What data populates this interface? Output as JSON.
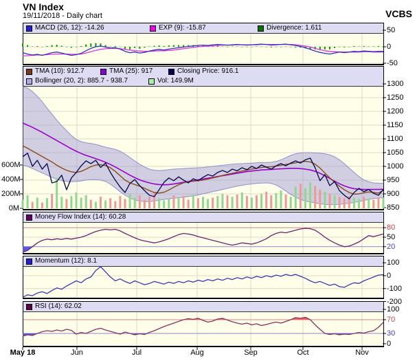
{
  "page": {
    "title": "VN Index",
    "subtitle": "19/11/2018 - Daily chart",
    "brand": "VCBS"
  },
  "colors": {
    "plot_bg": "#fffee9",
    "header_bg": "#dedcf2",
    "grid": "#d9d9c6",
    "macd_line": "#3030c0",
    "exp_line": "#e030e0",
    "divergence_bar": "#009900",
    "close_line": "#101055",
    "tma10_line": "#8a4a1a",
    "tma25_line": "#9900cc",
    "bollinger_fill": "rgba(145,140,215,0.42)",
    "bollinger_edge": "#9090d0",
    "vol_up": "#90d890",
    "vol_down": "#f09898",
    "mfi_line": "#702070",
    "momentum_line": "#3838b8",
    "rsi_line": "#8a3060",
    "overbought_line": "#cc8888",
    "oversold_line": "#8888cc",
    "overbought_fill": "#ff5c5c",
    "oversold_fill": "#5858e0",
    "tick_red": "#b84444",
    "tick_blue": "#4444b8"
  },
  "chart_data": {
    "type": "line",
    "title": "VN Index - Daily chart",
    "x_axis": {
      "labels": [
        "May 18",
        "Jun",
        "Jul",
        "Aug",
        "Sep",
        "Oct",
        "Nov"
      ]
    },
    "panels": [
      {
        "name": "MACD",
        "legend": [
          {
            "label": "MACD (26, 12): -14.26",
            "color": "#2222cc"
          },
          {
            "label": "EXP (9): -15.87",
            "color": "#ee00ee"
          },
          {
            "label": "Divergence: 1.611",
            "color": "#007700"
          }
        ],
        "right_ticks": [
          {
            "v": 50,
            "label": "50"
          },
          {
            "v": 0,
            "label": "0"
          },
          {
            "v": -50,
            "label": "-50"
          }
        ],
        "grid_values": [
          0,
          -50
        ],
        "series": {
          "macd": [
            -18,
            -22,
            -25,
            -23,
            -26,
            -22,
            -18,
            -16,
            -19,
            -23,
            -26,
            -24,
            -20,
            -12,
            -5,
            0,
            2,
            -1,
            -4,
            -3,
            -7,
            -14,
            -18,
            -16,
            -19,
            -17,
            -13,
            -10,
            -8,
            -10,
            -7,
            -5,
            -3,
            -1,
            1,
            3,
            4,
            5,
            4,
            6,
            7,
            6,
            5,
            6,
            7,
            6,
            5,
            6,
            7,
            8,
            7,
            5,
            6,
            7,
            8,
            6,
            4,
            1,
            -3,
            -8,
            -13,
            -17,
            -20,
            -22,
            -19,
            -16,
            -18,
            -16,
            -14,
            -15,
            -13,
            -14,
            -15,
            -14,
            -14.26
          ],
          "exp": [
            -28,
            -27,
            -26,
            -25,
            -25,
            -24,
            -23,
            -22,
            -22,
            -22,
            -23,
            -23,
            -22,
            -19,
            -15,
            -11,
            -8,
            -6,
            -5,
            -5,
            -6,
            -8,
            -10,
            -12,
            -13,
            -14,
            -14,
            -13,
            -12,
            -12,
            -11,
            -10,
            -8,
            -6,
            -4,
            -2,
            0,
            1,
            2,
            3,
            4,
            5,
            5,
            5,
            6,
            6,
            6,
            6,
            6,
            7,
            7,
            7,
            7,
            7,
            7,
            7,
            6,
            4,
            2,
            -1,
            -5,
            -9,
            -12,
            -14,
            -15,
            -16,
            -16,
            -16,
            -16,
            -16,
            -15,
            -15,
            -16,
            -16,
            -15.87
          ]
        },
        "divergence_last": 1.611
      },
      {
        "name": "Price",
        "legend": [
          {
            "label": "TMA (10): 912.7",
            "color": "#7b3a10"
          },
          {
            "label": "TMA (25): 917",
            "color": "#8800cc"
          },
          {
            "label": "Closing Price: 916.1",
            "color": "#000055"
          },
          {
            "label": "Bollinger (20, 2): 885.7 - 938.7",
            "color": "#aaaae8"
          },
          {
            "label": "Vol: 149.9M",
            "color": "#aaeeaa"
          }
        ],
        "right_ticks": [
          {
            "v": 1300,
            "label": "1300"
          },
          {
            "v": 1250,
            "label": "1250"
          },
          {
            "v": 1200,
            "label": "1200"
          },
          {
            "v": 1150,
            "label": "1150"
          },
          {
            "v": 1100,
            "label": "1100"
          },
          {
            "v": 1050,
            "label": "1050"
          },
          {
            "v": 1000,
            "label": "1000"
          },
          {
            "v": 950,
            "label": "950"
          },
          {
            "v": 900,
            "label": "900"
          },
          {
            "v": 850,
            "label": "850"
          }
        ],
        "left_ticks": [
          {
            "v": 600,
            "label": "600M"
          },
          {
            "v": 400,
            "label": "400M"
          },
          {
            "v": 200,
            "label": "200M"
          },
          {
            "v": 0,
            "label": "0M"
          }
        ],
        "grid_values": [
          1250,
          1200,
          1150,
          1100,
          1050,
          1000,
          950,
          900
        ],
        "series": {
          "close": [
            1035,
            1048,
            1000,
            1022,
            990,
            1010,
            940,
            945,
            968,
            915,
            958,
            978,
            1002,
            1020,
            1010,
            1022,
            996,
            1012,
            978,
            950,
            925,
            905,
            938,
            952,
            930,
            912,
            895,
            890,
            915,
            942,
            958,
            948,
            962,
            950,
            940,
            955,
            948,
            960,
            970,
            965,
            978,
            985,
            978,
            990,
            984,
            995,
            988,
            1000,
            992,
            1005,
            997,
            990,
            1002,
            1010,
            1002,
            1012,
            1020,
            1012,
            1024,
            1030,
            995,
            948,
            970,
            930,
            945,
            912,
            895,
            882,
            905,
            920,
            908,
            916,
            902,
            895,
            916.1
          ],
          "tma10": [
            1075,
            1066,
            1056,
            1046,
            1036,
            1026,
            1016,
            1004,
            994,
            986,
            980,
            978,
            982,
            990,
            999,
            1005,
            1006,
            1003,
            995,
            982,
            966,
            950,
            940,
            934,
            928,
            920,
            912,
            905,
            903,
            906,
            914,
            924,
            933,
            940,
            944,
            946,
            948,
            950,
            954,
            958,
            962,
            967,
            971,
            975,
            979,
            983,
            986,
            990,
            993,
            996,
            998,
            999,
            1001,
            1004,
            1007,
            1010,
            1013,
            1016,
            1018,
            1016,
            1008,
            994,
            976,
            958,
            942,
            928,
            915,
            905,
            899,
            900,
            904,
            907,
            905,
            903,
            912.7
          ],
          "tma25": [
            1158,
            1150,
            1142,
            1133,
            1124,
            1114,
            1104,
            1094,
            1084,
            1074,
            1064,
            1055,
            1047,
            1040,
            1034,
            1028,
            1022,
            1015,
            1007,
            998,
            988,
            978,
            968,
            959,
            951,
            945,
            940,
            936,
            934,
            933,
            934,
            936,
            939,
            942,
            945,
            948,
            951,
            954,
            957,
            960,
            963,
            966,
            969,
            972,
            975,
            978,
            981,
            983,
            985,
            987,
            988,
            989,
            990,
            991,
            992,
            993,
            993,
            992,
            990,
            987,
            982,
            975,
            966,
            956,
            946,
            937,
            929,
            923,
            919,
            917,
            916,
            916,
            916,
            916,
            917
          ],
          "bollinger_upper": [
            1292,
            1285,
            1272,
            1255,
            1235,
            1212,
            1190,
            1168,
            1148,
            1130,
            1112,
            1098,
            1090,
            1086,
            1083,
            1080,
            1075,
            1070,
            1066,
            1062,
            1055,
            1045,
            1032,
            1020,
            1008,
            998,
            990,
            986,
            985,
            986,
            988,
            990,
            991,
            992,
            993,
            994,
            995,
            996,
            998,
            1000,
            1002,
            1004,
            1006,
            1008,
            1009,
            1010,
            1011,
            1012,
            1013,
            1014,
            1014,
            1015,
            1018,
            1024,
            1032,
            1040,
            1046,
            1049,
            1050,
            1050,
            1049,
            1048,
            1046,
            1042,
            1035,
            1024,
            1010,
            994,
            978,
            963,
            951,
            944,
            940,
            939,
            938.7
          ],
          "bollinger_lower": [
            1005,
            1000,
            992,
            984,
            976,
            968,
            960,
            953,
            948,
            945,
            944,
            945,
            947,
            950,
            952,
            952,
            950,
            945,
            935,
            922,
            908,
            895,
            885,
            878,
            874,
            872,
            872,
            874,
            877,
            880,
            882,
            884,
            886,
            888,
            890,
            893,
            896,
            900,
            904,
            908,
            912,
            916,
            920,
            924,
            928,
            931,
            934,
            936,
            938,
            939,
            940,
            938,
            932,
            922,
            910,
            898,
            888,
            880,
            874,
            870,
            867,
            864,
            862,
            861,
            861,
            862,
            864,
            866,
            869,
            872,
            876,
            880,
            883,
            885,
            885.7
          ],
          "volume_millions": [
            120,
            180,
            90,
            150,
            80,
            140,
            200,
            420,
            160,
            130,
            170,
            220,
            150,
            180,
            120,
            90,
            160,
            110,
            140,
            100,
            170,
            130,
            200,
            150,
            180,
            120,
            160,
            220,
            140,
            110,
            130,
            180,
            150,
            170,
            120,
            190,
            140,
            160,
            130,
            150,
            170,
            200,
            180,
            160,
            190,
            220,
            170,
            150,
            180,
            200,
            230,
            180,
            210,
            250,
            190,
            160,
            300,
            340,
            280,
            360,
            310,
            260,
            230,
            200,
            180,
            160,
            140,
            170,
            150,
            130,
            160,
            140,
            120,
            150,
            149.9
          ]
        }
      },
      {
        "name": "Money Flow Index",
        "legend": [
          {
            "label": "Money Flow Index (14): 60.28",
            "color": "#660066"
          }
        ],
        "right_ticks": [
          {
            "v": 80,
            "label": "80",
            "color": "#b84444"
          },
          {
            "v": 50,
            "label": "50"
          },
          {
            "v": 20,
            "label": "20",
            "color": "#4444b8"
          }
        ],
        "overbought": 80,
        "oversold": 20,
        "series": {
          "mfi": [
            2,
            8,
            20,
            32,
            40,
            44,
            42,
            45,
            43,
            46,
            44,
            47,
            50,
            55,
            62,
            68,
            72,
            75,
            73,
            75,
            70,
            62,
            55,
            48,
            42,
            38,
            35,
            32,
            35,
            40,
            45,
            52,
            58,
            62,
            60,
            57,
            52,
            48,
            44,
            40,
            36,
            32,
            28,
            25,
            28,
            32,
            30,
            28,
            32,
            38,
            45,
            55,
            62,
            66,
            64,
            68,
            72,
            76,
            78,
            77,
            72,
            62,
            50,
            40,
            32,
            25,
            20,
            22,
            28,
            35,
            45,
            55,
            52,
            56,
            60.28
          ]
        }
      },
      {
        "name": "Momentum",
        "legend": [
          {
            "label": "Momentum (12): 8.1",
            "color": "#2222cc"
          }
        ],
        "right_ticks": [
          {
            "v": 100,
            "label": "100"
          },
          {
            "v": 0,
            "label": "0"
          },
          {
            "v": -100,
            "label": "-100"
          },
          {
            "v": -200,
            "label": "-200"
          }
        ],
        "grid_values": [
          0,
          -100
        ],
        "series": {
          "momentum": [
            -168,
            -148,
            -155,
            -135,
            -125,
            -138,
            -115,
            -95,
            -105,
            -80,
            -60,
            -40,
            -55,
            -25,
            -10,
            40,
            70,
            30,
            -10,
            -40,
            -25,
            -45,
            -60,
            -40,
            -55,
            -70,
            -60,
            -45,
            -55,
            -65,
            -50,
            -60,
            -45,
            -55,
            -40,
            -50,
            -35,
            -45,
            -30,
            -40,
            -25,
            -35,
            -20,
            -30,
            -15,
            -25,
            -10,
            -20,
            -5,
            -15,
            0,
            -10,
            5,
            -5,
            10,
            0,
            10,
            -5,
            -20,
            -40,
            -55,
            -45,
            -60,
            -75,
            -65,
            -85,
            -90,
            -70,
            -55,
            -60,
            -40,
            -25,
            -10,
            5,
            8.1
          ]
        }
      },
      {
        "name": "RSI",
        "legend": [
          {
            "label": "RSI (14): 62.02",
            "color": "#660044"
          }
        ],
        "right_ticks": [
          {
            "v": 100,
            "label": "100"
          },
          {
            "v": 70,
            "label": "70",
            "color": "#b84444"
          },
          {
            "v": 30,
            "label": "30",
            "color": "#4444b8"
          },
          {
            "v": 0,
            "label": "0"
          }
        ],
        "overbought": 70,
        "oversold": 30,
        "series": {
          "rsi": [
            22,
            26,
            24,
            30,
            35,
            38,
            36,
            40,
            37,
            42,
            39,
            28,
            33,
            30,
            36,
            42,
            45,
            40,
            36,
            32,
            28,
            34,
            30,
            26,
            29,
            27,
            33,
            38,
            44,
            50,
            55,
            60,
            65,
            70,
            73,
            71,
            74,
            68,
            63,
            66,
            72,
            74,
            69,
            64,
            60,
            57,
            60,
            55,
            58,
            53,
            56,
            60,
            63,
            60,
            65,
            70,
            76,
            74,
            77,
            70,
            55,
            42,
            30,
            27,
            29,
            26,
            28,
            27,
            30,
            33,
            31,
            35,
            38,
            48,
            62.02
          ]
        }
      }
    ]
  }
}
